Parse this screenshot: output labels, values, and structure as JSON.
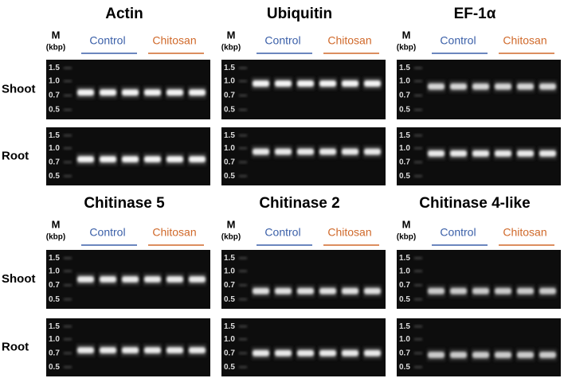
{
  "marker": "M",
  "unit": "(kbp)",
  "groups": [
    "Control",
    "Chitosan"
  ],
  "ladder": [
    "1.5",
    "1.0",
    "0.7",
    "0.5"
  ],
  "rows": [
    "Shoot",
    "Root"
  ],
  "panels": [
    {
      "title": "Actin"
    },
    {
      "title": "Ubiquitin"
    },
    {
      "title": "EF-1α"
    },
    {
      "title": "Chitinase 5"
    },
    {
      "title": "Chitinase 2"
    },
    {
      "title": "Chitinase 4-like"
    }
  ]
}
